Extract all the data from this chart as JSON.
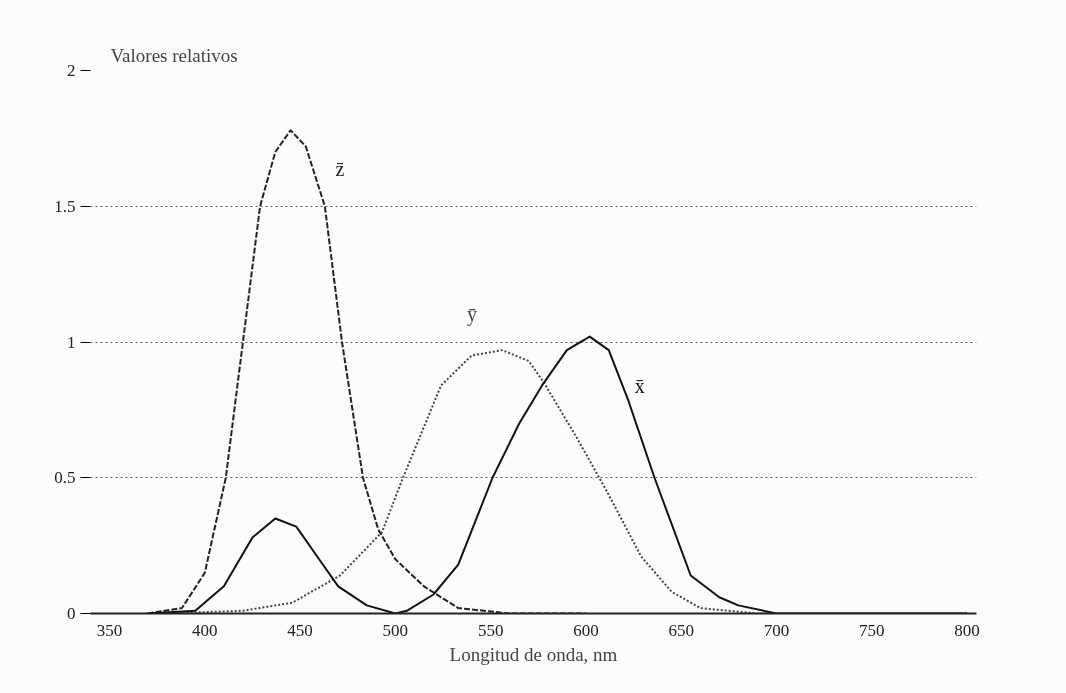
{
  "chart_data": {
    "type": "line",
    "xlabel": "Longitud de onda, nm",
    "ylabel": "Valores relativos",
    "xlim": [
      340,
      805
    ],
    "ylim": [
      0,
      2
    ],
    "xticks": [
      350,
      400,
      450,
      500,
      550,
      600,
      650,
      700,
      750,
      800
    ],
    "yticks": [
      0,
      {
        "value": 0.5,
        "label": "0.5"
      },
      1,
      {
        "value": 1.5,
        "label": "1.5"
      },
      2
    ],
    "grid": "y",
    "marker": "none",
    "series": [
      {
        "name": "z̄",
        "color": "#222222",
        "line_style": "dashed",
        "x": [
          370,
          388,
          400,
          411,
          420,
          429,
          437,
          445,
          453,
          463,
          472,
          483,
          491,
          500,
          515,
          533,
          560,
          600
        ],
        "values": [
          0,
          0.02,
          0.15,
          0.5,
          1.0,
          1.5,
          1.7,
          1.78,
          1.72,
          1.5,
          1.0,
          0.5,
          0.31,
          0.2,
          0.1,
          0.02,
          0,
          0
        ]
      },
      {
        "name": "ȳ",
        "color": "#444444",
        "line_style": "dotted",
        "x": [
          380,
          400,
          420,
          446,
          471,
          493,
          504,
          524,
          540,
          556,
          570,
          578,
          595,
          611,
          629,
          645,
          660,
          690,
          800
        ],
        "values": [
          0,
          0.005,
          0.01,
          0.04,
          0.14,
          0.3,
          0.5,
          0.84,
          0.95,
          0.97,
          0.93,
          0.85,
          0.65,
          0.45,
          0.21,
          0.08,
          0.02,
          0,
          0
        ]
      },
      {
        "name": "x̄",
        "color": "#111111",
        "line_style": "solid",
        "x": [
          370,
          395,
          410,
          425,
          437,
          448,
          460,
          470,
          485,
          500,
          506,
          520,
          533,
          551,
          565,
          577,
          590,
          602,
          612,
          622,
          636,
          655,
          670,
          680,
          700,
          800
        ],
        "values": [
          0,
          0.01,
          0.1,
          0.28,
          0.35,
          0.32,
          0.2,
          0.1,
          0.03,
          0,
          0.01,
          0.07,
          0.18,
          0.5,
          0.7,
          0.84,
          0.97,
          1.02,
          0.97,
          0.79,
          0.5,
          0.14,
          0.06,
          0.03,
          0,
          0
        ]
      }
    ]
  }
}
